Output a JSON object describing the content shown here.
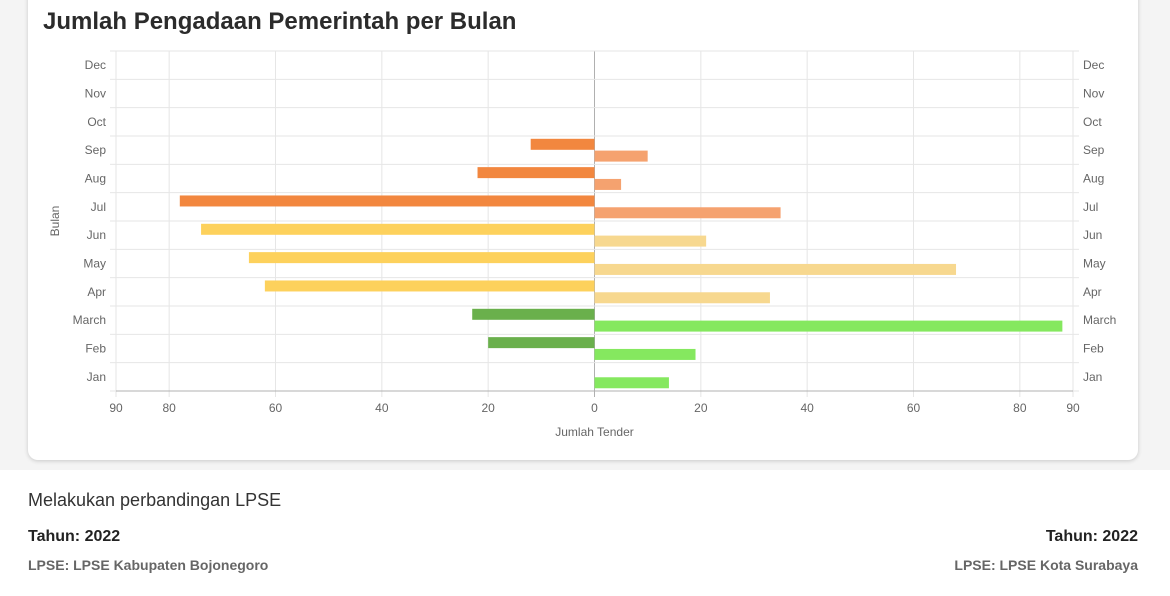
{
  "chart_data": {
    "type": "bar",
    "orientation": "horizontal",
    "title": "Jumlah Pengadaan Pemerintah per Bulan",
    "xlabel": "Jumlah Tender",
    "ylabel": "Bulan",
    "categories": [
      "Jan",
      "Feb",
      "March",
      "Apr",
      "May",
      "Jun",
      "Jul",
      "Aug",
      "Sep",
      "Oct",
      "Nov",
      "Dec"
    ],
    "xlim": [
      -90,
      90
    ],
    "xticks": [
      -90,
      -80,
      -60,
      -40,
      -20,
      0,
      20,
      40,
      60,
      80,
      90
    ],
    "xtick_labels": [
      "90",
      "80",
      "60",
      "40",
      "20",
      "0",
      "20",
      "40",
      "60",
      "80",
      "90"
    ],
    "grid": true,
    "series": [
      {
        "values": [
          0,
          20,
          23,
          62,
          65,
          74,
          78,
          22,
          12,
          0,
          0,
          0
        ],
        "colors": [
          "#6ab04c",
          "#6ab04c",
          "#6ab04c",
          "#fdd15c",
          "#fdd15c",
          "#fdd15c",
          "#f2873f",
          "#f2873f",
          "#f2873f",
          "#f2873f",
          "#f2873f",
          "#f2873f"
        ]
      },
      {
        "values": [
          14,
          19,
          88,
          33,
          68,
          21,
          35,
          5,
          10,
          0,
          0,
          0
        ],
        "colors": [
          "#85e85f",
          "#85e85f",
          "#85e85f",
          "#f7d88f",
          "#f7d88f",
          "#f7d88f",
          "#f5a26f",
          "#f5a26f",
          "#f5a26f",
          "#f5a26f",
          "#f5a26f",
          "#f5a26f"
        ]
      }
    ]
  },
  "comparison": {
    "heading": "Melakukan perbandingan LPSE",
    "left": {
      "year": "Tahun: 2022",
      "lpse": "LPSE: LPSE Kabupaten Bojonegoro"
    },
    "right": {
      "year": "Tahun: 2022",
      "lpse": "LPSE: LPSE Kota Surabaya"
    }
  }
}
